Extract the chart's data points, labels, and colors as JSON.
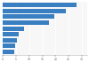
{
  "values": [
    28000,
    24000,
    19500,
    17500,
    8000,
    6200,
    5500,
    4800,
    4200
  ],
  "bar_color": "#3a7fc1",
  "background_color": "#ffffff",
  "plot_bg_color": "#f7f7f7",
  "xlim": [
    0,
    32000
  ],
  "figsize": [
    1.0,
    0.71
  ],
  "dpi": 100
}
